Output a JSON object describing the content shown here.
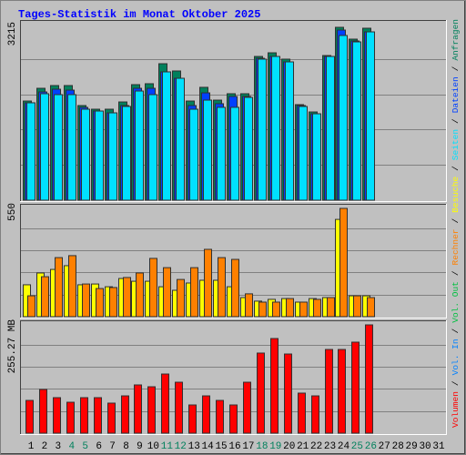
{
  "title": "Tages-Statistik im Monat Oktober 2025",
  "legend_separator": "/",
  "chart_data": [
    {
      "type": "bar",
      "ylim": [
        0,
        3215
      ],
      "yticks": [
        3215
      ],
      "series": [
        {
          "name": "Anfragen",
          "color": "#00805c",
          "values": [
            1844,
            2081,
            2132,
            2132,
            1760,
            1692,
            1692,
            1827,
            2149,
            2166,
            2538,
            2403,
            1844,
            2099,
            1861,
            1980,
            1980,
            2673,
            2741,
            2623,
            1777,
            1641,
            2690,
            3215,
            2995,
            3198,
            null,
            null,
            null,
            null,
            null
          ]
        },
        {
          "name": "Dateien",
          "color": "#0040ff",
          "values": [
            1811,
            2013,
            2064,
            2047,
            1726,
            1658,
            1624,
            1760,
            2081,
            2081,
            2386,
            2267,
            1760,
            1996,
            1794,
            1929,
            1929,
            2639,
            2673,
            2572,
            1760,
            1607,
            2673,
            3164,
            2961,
            3130,
            null,
            null,
            null,
            null,
            null
          ]
        },
        {
          "name": "Seiten",
          "color": "#00e0ff",
          "values": [
            1811,
            1980,
            1963,
            1963,
            1692,
            1658,
            1624,
            1743,
            2030,
            1963,
            2386,
            2267,
            1692,
            1861,
            1727,
            1727,
            1912,
            2623,
            2673,
            2572,
            1743,
            1607,
            2673,
            3063,
            2944,
            3130,
            null,
            null,
            null,
            null,
            null
          ]
        }
      ]
    },
    {
      "type": "bar",
      "ylim": [
        0,
        550
      ],
      "yticks": [
        550
      ],
      "series": [
        {
          "name": "Besuche",
          "color": "#ffff00",
          "values": [
            162,
            222,
            240,
            259,
            162,
            166,
            152,
            194,
            180,
            180,
            152,
            134,
            171,
            185,
            185,
            152,
            97,
            79,
            88,
            92,
            74,
            92,
            97,
            494,
            106,
            106,
            null,
            null,
            null,
            null,
            null
          ]
        },
        {
          "name": "Rechner",
          "color": "#ff8000",
          "values": [
            106,
            203,
            300,
            310,
            166,
            143,
            148,
            199,
            222,
            296,
            249,
            189,
            249,
            342,
            300,
            291,
            116,
            74,
            74,
            92,
            74,
            88,
            97,
            550,
            106,
            97,
            null,
            null,
            null,
            null,
            null
          ]
        }
      ]
    },
    {
      "type": "bar",
      "ylim": [
        0,
        255.27
      ],
      "yticks": [
        {
          "value": 255.27,
          "label": "255.27 MB"
        }
      ],
      "categories": [
        "1",
        "2",
        "3",
        "4",
        "5",
        "6",
        "7",
        "8",
        "9",
        "10",
        "11",
        "12",
        "13",
        "14",
        "15",
        "16",
        "17",
        "18",
        "19",
        "20",
        "21",
        "22",
        "23",
        "24",
        "25",
        "26",
        "27",
        "28",
        "29",
        "30",
        "31"
      ],
      "category_colors": [
        "#000000",
        "#000000",
        "#000000",
        "#00805c",
        "#00805c",
        "#000000",
        "#000000",
        "#000000",
        "#000000",
        "#000000",
        "#00805c",
        "#00805c",
        "#000000",
        "#000000",
        "#000000",
        "#000000",
        "#000000",
        "#00805c",
        "#00805c",
        "#000000",
        "#000000",
        "#000000",
        "#000000",
        "#000000",
        "#00805c",
        "#00805c",
        "#000000",
        "#000000",
        "#000000",
        "#000000",
        "#000000"
      ],
      "series": [
        {
          "name": "Volumen",
          "color": "#ff0000",
          "values": [
            77.2,
            103.0,
            83.7,
            72.9,
            83.7,
            83.7,
            70.8,
            87.9,
            113.7,
            109.4,
            139.4,
            120.1,
            66.5,
            87.9,
            77.2,
            66.5,
            120.1,
            188.8,
            223.1,
            186.6,
            94.4,
            87.9,
            197.3,
            197.3,
            214.5,
            255.27,
            null,
            null,
            null,
            null,
            null
          ]
        },
        {
          "name": "Vol. In",
          "color": "#0080ff",
          "values": [
            null,
            null,
            null,
            null,
            null,
            null,
            null,
            null,
            null,
            null,
            null,
            null,
            null,
            null,
            null,
            null,
            null,
            null,
            null,
            null,
            null,
            null,
            null,
            null,
            null,
            null,
            null,
            null,
            null,
            null,
            null
          ]
        },
        {
          "name": "Vol. Out",
          "color": "#00c040",
          "values": [
            null,
            null,
            null,
            null,
            null,
            null,
            null,
            null,
            null,
            null,
            null,
            null,
            null,
            null,
            null,
            null,
            null,
            null,
            null,
            null,
            null,
            null,
            null,
            null,
            null,
            null,
            null,
            null,
            null,
            null,
            null
          ]
        }
      ]
    }
  ]
}
